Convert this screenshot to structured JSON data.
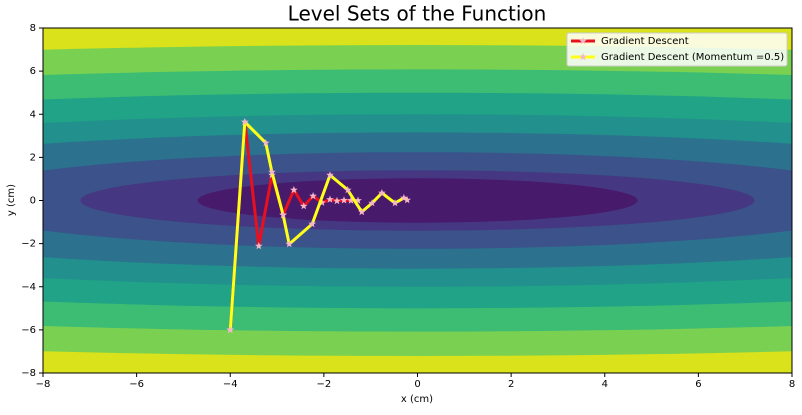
{
  "chart_data": {
    "type": "contour",
    "title": "Level Sets of the Function",
    "xlabel": "x (cm)",
    "ylabel": "y (cm)",
    "xlim": [
      -8,
      8
    ],
    "ylim": [
      -8,
      8
    ],
    "xticks": [
      {
        "value": -8,
        "label": "−8"
      },
      {
        "value": -6,
        "label": "−6"
      },
      {
        "value": -4,
        "label": "−4"
      },
      {
        "value": -2,
        "label": "−2"
      },
      0,
      2,
      4,
      6,
      8
    ],
    "yticks": [
      {
        "value": -8,
        "label": "−8"
      },
      {
        "value": -6,
        "label": "−6"
      },
      {
        "value": -4,
        "label": "−4"
      },
      {
        "value": -2,
        "label": "−2"
      },
      0,
      2,
      4,
      6,
      8
    ],
    "contour": {
      "background": "#d9e21a",
      "ellipses": [
        {
          "rx": 32.9,
          "ry": 7.21,
          "color": "#7ad151"
        },
        {
          "rx": 27.7,
          "ry": 6.08,
          "color": "#3dbc74"
        },
        {
          "rx": 22.8,
          "ry": 5.0,
          "color": "#20a386"
        },
        {
          "rx": 18.2,
          "ry": 4.0,
          "color": "#22908c"
        },
        {
          "rx": 14.4,
          "ry": 3.16,
          "color": "#2c718e"
        },
        {
          "rx": 10.2,
          "ry": 2.24,
          "color": "#3b528b"
        },
        {
          "rx": 7.2,
          "ry": 1.4,
          "color": "#453781"
        },
        {
          "rx": 4.7,
          "ry": 1.03,
          "color": "#481a6c"
        }
      ]
    },
    "series": [
      {
        "name": "Gradient Descent",
        "color": "#e8101e",
        "marker_color": "#f4b6c8",
        "x": [
          -4.0,
          -3.69,
          -3.39,
          -3.11,
          -2.87,
          -2.64,
          -2.43,
          -2.23,
          -2.04,
          -1.87,
          -1.72,
          -1.57,
          -1.42,
          -1.27
        ],
        "y": [
          -6.0,
          3.64,
          -2.11,
          1.18,
          -0.67,
          0.49,
          -0.26,
          0.21,
          -0.1,
          0.05,
          -0.02,
          0.01,
          0,
          0
        ]
      },
      {
        "name": "Gradient Descent (Momentum =0.5)",
        "color": "#ffff1a",
        "marker_color": "#f4b6c8",
        "x": [
          -4.0,
          -3.69,
          -3.24,
          -3.11,
          -2.87,
          -2.74,
          -2.25,
          -1.87,
          -1.49,
          -1.19,
          -0.97,
          -0.76,
          -0.48,
          -0.29,
          -0.22
        ],
        "y": [
          -6.0,
          3.64,
          2.67,
          1.32,
          -0.67,
          -2.02,
          -1.09,
          1.18,
          0.49,
          -0.53,
          -0.12,
          0.35,
          -0.12,
          0.12,
          0.02
        ]
      }
    ],
    "legend": "upper right"
  }
}
